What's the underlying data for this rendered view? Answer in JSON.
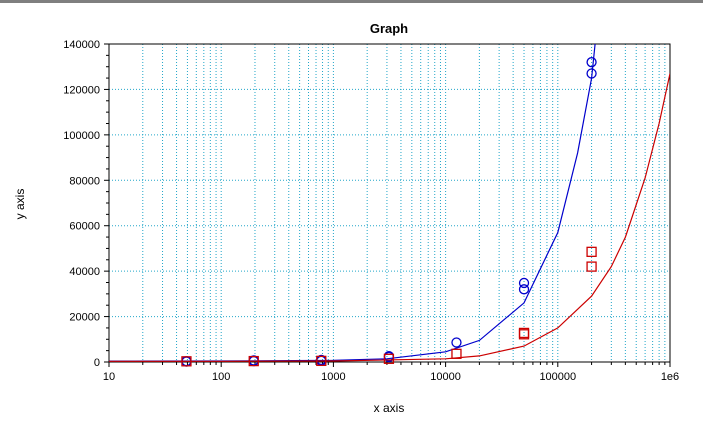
{
  "chart_data": {
    "type": "scatter",
    "title": "Graph",
    "xlabel": "x axis",
    "ylabel": "y axis",
    "x_scale": "log",
    "xlim": [
      10,
      1000000
    ],
    "ylim": [
      0,
      140000
    ],
    "grid": true,
    "x_tick_values": [
      10,
      100,
      1000,
      10000,
      100000,
      1000000
    ],
    "x_tick_labels": [
      "10",
      "100",
      "1000",
      "10000",
      "100000",
      "1e6"
    ],
    "y_tick_values": [
      0,
      20000,
      40000,
      60000,
      80000,
      100000,
      120000,
      140000
    ],
    "y_tick_labels": [
      "0",
      "20000",
      "40000",
      "60000",
      "80000",
      "100000",
      "120000",
      "140000"
    ],
    "series": [
      {
        "color": "#0000cc",
        "marker": "circle",
        "points": [
          {
            "x": 49,
            "y": 200
          },
          {
            "x": 49,
            "y": 400
          },
          {
            "x": 195,
            "y": 400
          },
          {
            "x": 195,
            "y": 700
          },
          {
            "x": 780,
            "y": 500
          },
          {
            "x": 780,
            "y": 900
          },
          {
            "x": 3125,
            "y": 2200
          },
          {
            "x": 3125,
            "y": 2600
          },
          {
            "x": 12500,
            "y": 8600
          },
          {
            "x": 50000,
            "y": 32000
          },
          {
            "x": 50000,
            "y": 34800
          },
          {
            "x": 200000,
            "y": 127000
          },
          {
            "x": 200000,
            "y": 132000
          }
        ],
        "fit_curve": [
          {
            "x": 10,
            "y": 380
          },
          {
            "x": 100,
            "y": 420
          },
          {
            "x": 1000,
            "y": 700
          },
          {
            "x": 3000,
            "y": 1400
          },
          {
            "x": 10000,
            "y": 4500
          },
          {
            "x": 20000,
            "y": 9500
          },
          {
            "x": 50000,
            "y": 26000
          },
          {
            "x": 100000,
            "y": 57000
          },
          {
            "x": 150000,
            "y": 92000
          },
          {
            "x": 200000,
            "y": 125000
          },
          {
            "x": 215000,
            "y": 140000
          }
        ]
      },
      {
        "color": "#cc0000",
        "marker": "square",
        "points": [
          {
            "x": 49,
            "y": 300
          },
          {
            "x": 195,
            "y": 400
          },
          {
            "x": 780,
            "y": 500
          },
          {
            "x": 3125,
            "y": 1400
          },
          {
            "x": 12500,
            "y": 3600
          },
          {
            "x": 50000,
            "y": 12200
          },
          {
            "x": 50000,
            "y": 12800
          },
          {
            "x": 200000,
            "y": 42000
          },
          {
            "x": 200000,
            "y": 48500
          }
        ],
        "fit_curve": [
          {
            "x": 10,
            "y": 300
          },
          {
            "x": 100,
            "y": 320
          },
          {
            "x": 1000,
            "y": 420
          },
          {
            "x": 10000,
            "y": 1400
          },
          {
            "x": 20000,
            "y": 2700
          },
          {
            "x": 50000,
            "y": 7000
          },
          {
            "x": 100000,
            "y": 15000
          },
          {
            "x": 200000,
            "y": 29000
          },
          {
            "x": 300000,
            "y": 42000
          },
          {
            "x": 400000,
            "y": 55000
          },
          {
            "x": 600000,
            "y": 81000
          },
          {
            "x": 800000,
            "y": 105000
          },
          {
            "x": 1000000,
            "y": 127000
          }
        ]
      }
    ]
  }
}
